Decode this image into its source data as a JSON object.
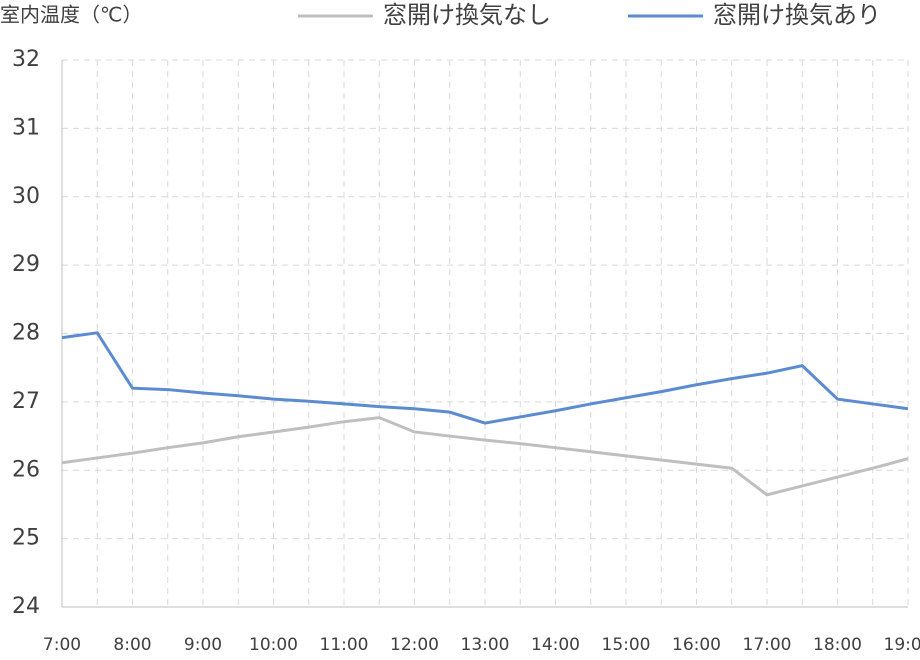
{
  "chart_data": {
    "type": "line",
    "y_label": "室内温度（℃）",
    "categories": [
      "7:00",
      null,
      "8:00",
      null,
      "9:00",
      null,
      "10:00",
      null,
      "11:00",
      null,
      "12:00",
      null,
      "13:00",
      null,
      "14:00",
      null,
      "15:00",
      null,
      "16:00",
      null,
      "17:00",
      null,
      "18:00",
      null,
      "19:00"
    ],
    "series": [
      {
        "name": "窓開け換気なし",
        "color": "#bfbfbf",
        "values": [
          26.11,
          26.18,
          26.25,
          26.33,
          26.4,
          26.49,
          26.56,
          26.63,
          26.71,
          26.77,
          26.56,
          26.5,
          26.44,
          26.39,
          26.33,
          26.27,
          26.21,
          26.15,
          26.09,
          26.03,
          25.64,
          25.77,
          25.9,
          26.03,
          26.17
        ]
      },
      {
        "name": "窓開け換気あり",
        "color": "#5b8bd0",
        "values": [
          27.94,
          28.01,
          27.2,
          27.18,
          27.13,
          27.09,
          27.04,
          27.01,
          26.97,
          26.93,
          26.9,
          26.85,
          26.69,
          26.78,
          26.87,
          26.97,
          27.06,
          27.15,
          27.25,
          27.34,
          27.42,
          27.53,
          27.04,
          26.97,
          26.9
        ]
      }
    ],
    "ylim": [
      24,
      32
    ],
    "yticks": [
      24,
      25,
      26,
      27,
      28,
      29,
      30,
      31,
      32
    ],
    "grid": true
  }
}
